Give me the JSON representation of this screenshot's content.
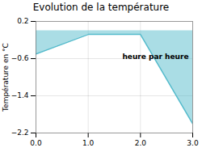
{
  "chart_data": {
    "type": "area",
    "title": "Evolution de la température",
    "ylabel": "Température en °C",
    "annotations": [
      {
        "text": "heure par heure"
      }
    ],
    "x": [
      0,
      1,
      2,
      3
    ],
    "values": [
      -0.5,
      -0.08,
      -0.08,
      -2.0
    ],
    "color": "#55bbcc",
    "xlim": [
      0,
      3
    ],
    "ylim": [
      -2.2,
      0.2
    ],
    "xticks": [
      0,
      1,
      2,
      3
    ],
    "yticks": [
      0.2,
      -0.6,
      -1.4,
      -2.2
    ],
    "grid": true
  }
}
